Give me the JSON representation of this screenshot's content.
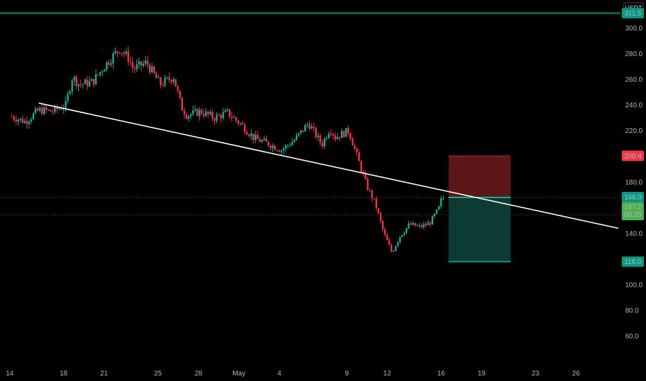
{
  "chart_data": {
    "type": "candlestick",
    "currency": "USDT",
    "y_axis": {
      "min": 45,
      "max": 318,
      "ticks": [
        60,
        80,
        100,
        120,
        140,
        160,
        180,
        200,
        220,
        240,
        260,
        280,
        300
      ]
    },
    "x_axis": {
      "start_date": "Apr 14",
      "ticks": [
        {
          "label": "14",
          "day": 0
        },
        {
          "label": "18",
          "day": 4
        },
        {
          "label": "21",
          "day": 7
        },
        {
          "label": "25",
          "day": 11
        },
        {
          "label": "28",
          "day": 14
        },
        {
          "label": "May",
          "day": 17
        },
        {
          "label": "4",
          "day": 20
        },
        {
          "label": "9",
          "day": 25
        },
        {
          "label": "12",
          "day": 28
        },
        {
          "label": "16",
          "day": 32
        },
        {
          "label": "19",
          "day": 35
        },
        {
          "label": "23",
          "day": 39
        },
        {
          "label": "26",
          "day": 42
        }
      ]
    },
    "price_series": [
      {
        "day": 0,
        "close": 231
      },
      {
        "day": 1,
        "close": 227
      },
      {
        "day": 2,
        "close": 236
      },
      {
        "day": 3,
        "close": 235
      },
      {
        "day": 4,
        "close": 240
      },
      {
        "day": 4.5,
        "close": 262
      },
      {
        "day": 5,
        "close": 256
      },
      {
        "day": 6,
        "close": 258
      },
      {
        "day": 7,
        "close": 272
      },
      {
        "day": 8,
        "close": 284
      },
      {
        "day": 8.7,
        "close": 276
      },
      {
        "day": 9,
        "close": 268
      },
      {
        "day": 10,
        "close": 273
      },
      {
        "day": 11,
        "close": 256
      },
      {
        "day": 12,
        "close": 262
      },
      {
        "day": 12.6,
        "close": 238
      },
      {
        "day": 13,
        "close": 232
      },
      {
        "day": 14,
        "close": 235
      },
      {
        "day": 15,
        "close": 230
      },
      {
        "day": 16,
        "close": 234
      },
      {
        "day": 17,
        "close": 225
      },
      {
        "day": 18,
        "close": 214
      },
      {
        "day": 19,
        "close": 210
      },
      {
        "day": 20,
        "close": 205
      },
      {
        "day": 21,
        "close": 213
      },
      {
        "day": 22,
        "close": 226
      },
      {
        "day": 23,
        "close": 209
      },
      {
        "day": 23.6,
        "close": 222
      },
      {
        "day": 24,
        "close": 215
      },
      {
        "day": 25,
        "close": 220
      },
      {
        "day": 25.8,
        "close": 194
      },
      {
        "day": 26.3,
        "close": 178
      },
      {
        "day": 27,
        "close": 162
      },
      {
        "day": 27.6,
        "close": 140
      },
      {
        "day": 28.2,
        "close": 125
      },
      {
        "day": 28.8,
        "close": 138
      },
      {
        "day": 29.5,
        "close": 147
      },
      {
        "day": 30.3,
        "close": 145
      },
      {
        "day": 31,
        "close": 148
      },
      {
        "day": 31.6,
        "close": 158
      },
      {
        "day": 32,
        "close": 167.2
      }
    ],
    "trendline": {
      "start": {
        "day": 2,
        "price": 241.5
      },
      "end": {
        "day": 45,
        "price": 144
      }
    },
    "position": {
      "start_day": 32.4,
      "end_day": 37,
      "entry": 168.0,
      "stop": 200.4,
      "target": 118.0
    },
    "horizontal_level": 311.5,
    "current_price": 167.2,
    "countdown": "09:35",
    "dotted_levels": [
      168.0,
      154.5
    ],
    "colors": {
      "up": "#22ab94",
      "down": "#f23645",
      "wick": "#5d606b",
      "stop_zone": "#5b1717",
      "target_zone": "#0c3b33",
      "trendline": "#ffffff",
      "level_line": "#1e5f4f",
      "label_green": "#089981",
      "label_red": "#f23645",
      "label_price": "#4caf50"
    }
  },
  "price_labels": {
    "currency": "USDT",
    "level": "311.5",
    "stop": "200.4",
    "entry": "168.0",
    "current": "167.2",
    "countdown": "09:35",
    "target": "118.0"
  }
}
